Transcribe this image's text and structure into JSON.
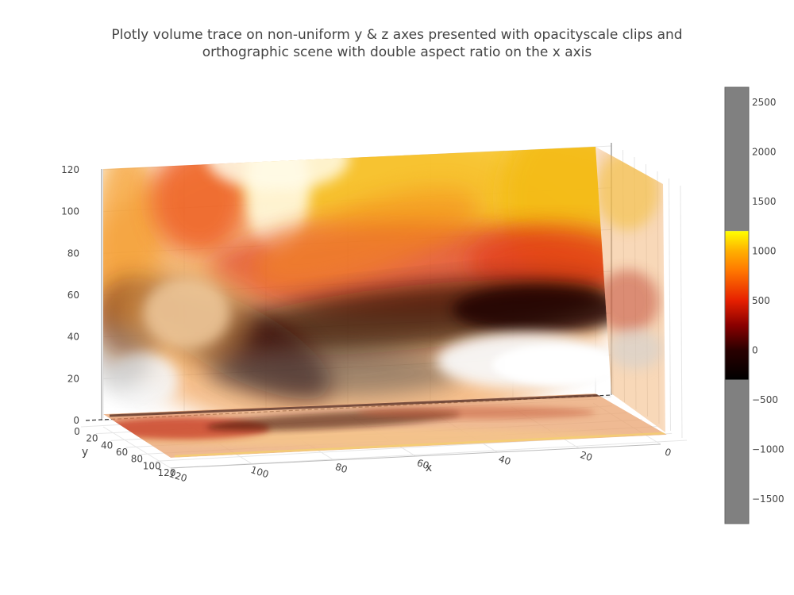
{
  "title_lines": [
    "Plotly volume trace on non-uniform y & z axes presented with opacityscale clips and",
    "orthographic scene with double aspect ratio on the x axis"
  ],
  "chart_data": {
    "type": "volume",
    "title": "Plotly volume trace on non-uniform y & z axes presented with opacityscale clips and orthographic scene with double aspect ratio on the x axis",
    "projection": "orthographic",
    "aspect_ratio": {
      "x": 2,
      "y": 1,
      "z": 1
    },
    "opacityscale": "clips",
    "x_axis": {
      "label": "x",
      "ticks": [
        0,
        20,
        40,
        60,
        80,
        100,
        120
      ],
      "range": [
        0,
        128
      ]
    },
    "y_axis": {
      "label": "y",
      "ticks": [
        0,
        20,
        40,
        60,
        80,
        100,
        120
      ],
      "range": [
        0,
        128
      ]
    },
    "z_axis": {
      "label": "",
      "ticks": [
        0,
        20,
        40,
        60,
        80,
        100,
        120
      ],
      "range": [
        0,
        128
      ]
    },
    "colorscale": [
      {
        "value": -300,
        "color": "#000000"
      },
      {
        "value": 500,
        "color": "#e62000"
      },
      {
        "value": 800,
        "color": "#ff7700"
      },
      {
        "value": 1200,
        "color": "#ffff00"
      }
    ],
    "opaque_range": [
      -300,
      1200
    ],
    "colorbar": {
      "ticks": [
        2500,
        2000,
        1500,
        1000,
        500,
        0,
        -500,
        -1000,
        -1500
      ],
      "tick_labels": [
        "2500",
        "2000",
        "1500",
        "1000",
        "500",
        "0",
        "−500",
        "−1000",
        "−1500"
      ],
      "range": [
        -1750,
        2650
      ],
      "outside_color": "#808080",
      "gradient_stops": [
        {
          "value": 1200,
          "color": "#ffff00"
        },
        {
          "value": 1000,
          "color": "#ffb000"
        },
        {
          "value": 800,
          "color": "#ff7700"
        },
        {
          "value": 500,
          "color": "#e62000"
        },
        {
          "value": 250,
          "color": "#8a0000"
        },
        {
          "value": 0,
          "color": "#2a0000"
        },
        {
          "value": -300,
          "color": "#000000"
        }
      ]
    }
  }
}
